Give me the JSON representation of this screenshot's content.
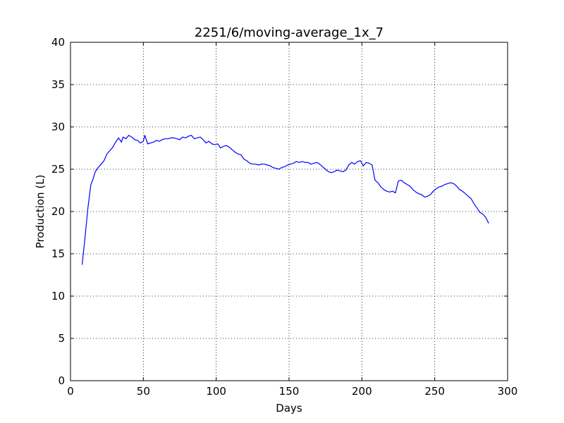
{
  "chart_data": {
    "type": "line",
    "title": "2251/6/moving-average_1x_7",
    "xlabel": "Days",
    "ylabel": "Production (L)",
    "xlim": [
      0,
      300
    ],
    "ylim": [
      0,
      40
    ],
    "xticks": [
      0,
      50,
      100,
      150,
      200,
      250,
      300
    ],
    "yticks": [
      0,
      5,
      10,
      15,
      20,
      25,
      30,
      35,
      40
    ],
    "grid": true,
    "series": [
      {
        "color": "#0000ff",
        "x": [
          8,
          10,
          12,
          14,
          15,
          17,
          19,
          21,
          23,
          25,
          27,
          29,
          31,
          33,
          35,
          36,
          38,
          40,
          42,
          44,
          46,
          48,
          50,
          51,
          53,
          55,
          57,
          59,
          61,
          63,
          65,
          67,
          69,
          71,
          73,
          75,
          77,
          79,
          81,
          83,
          85,
          87,
          89,
          91,
          93,
          95,
          97,
          99,
          101,
          103,
          105,
          107,
          109,
          111,
          113,
          115,
          117,
          119,
          121,
          123,
          125,
          127,
          129,
          131,
          133,
          135,
          137,
          139,
          141,
          143,
          145,
          147,
          149,
          151,
          153,
          155,
          157,
          159,
          161,
          163,
          165,
          167,
          169,
          171,
          173,
          175,
          177,
          179,
          181,
          183,
          185,
          187,
          189,
          191,
          193,
          195,
          197,
          199,
          201,
          203,
          205,
          207,
          209,
          211,
          213,
          215,
          217,
          219,
          221,
          223,
          225,
          227,
          229,
          231,
          233,
          235,
          237,
          239,
          241,
          243,
          245,
          247,
          249,
          251,
          253,
          255,
          257,
          259,
          261,
          263,
          265,
          267,
          269,
          271,
          273,
          275,
          277,
          279,
          281,
          283,
          285,
          287
        ],
        "values": [
          13.7,
          17.0,
          20.5,
          23.2,
          23.6,
          24.7,
          25.2,
          25.6,
          26.0,
          26.8,
          27.2,
          27.6,
          28.2,
          28.7,
          28.2,
          28.8,
          28.6,
          29.0,
          28.8,
          28.5,
          28.4,
          28.1,
          28.3,
          29.0,
          28.0,
          28.1,
          28.2,
          28.4,
          28.3,
          28.5,
          28.6,
          28.6,
          28.7,
          28.7,
          28.6,
          28.5,
          28.8,
          28.7,
          28.9,
          29.0,
          28.6,
          28.7,
          28.8,
          28.5,
          28.1,
          28.3,
          28.0,
          27.9,
          28.0,
          27.5,
          27.7,
          27.8,
          27.6,
          27.3,
          27.0,
          26.8,
          26.7,
          26.2,
          26.0,
          25.7,
          25.6,
          25.6,
          25.5,
          25.6,
          25.6,
          25.5,
          25.4,
          25.2,
          25.1,
          25.0,
          25.2,
          25.3,
          25.5,
          25.6,
          25.7,
          25.9,
          25.8,
          25.9,
          25.8,
          25.8,
          25.6,
          25.7,
          25.8,
          25.6,
          25.3,
          25.0,
          24.7,
          24.6,
          24.7,
          24.9,
          24.8,
          24.7,
          24.9,
          25.5,
          25.8,
          25.6,
          25.9,
          26.0,
          25.4,
          25.8,
          25.7,
          25.5,
          23.7,
          23.4,
          22.9,
          22.6,
          22.4,
          22.3,
          22.4,
          22.2,
          23.6,
          23.7,
          23.4,
          23.2,
          23.0,
          22.6,
          22.3,
          22.1,
          22.0,
          21.7,
          21.8,
          22.0,
          22.4,
          22.7,
          22.9,
          23.0,
          23.2,
          23.3,
          23.4,
          23.3,
          23.0,
          22.6,
          22.4,
          22.1,
          21.8,
          21.5,
          20.9,
          20.4,
          19.9,
          19.7,
          19.3,
          18.6
        ]
      }
    ]
  }
}
